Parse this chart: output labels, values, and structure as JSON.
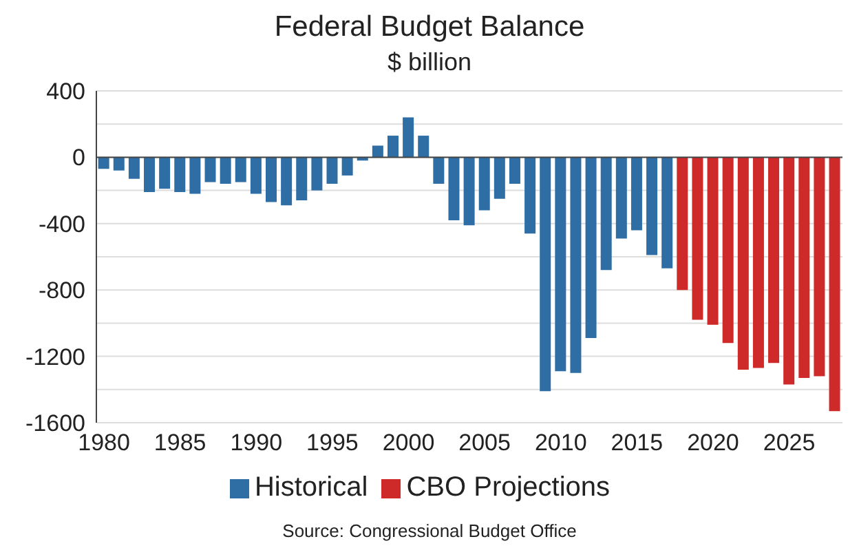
{
  "chart_data": {
    "type": "bar",
    "title": "Federal Budget Balance",
    "subtitle": "$ billion",
    "categories": [
      "1980",
      null,
      null,
      null,
      null,
      "1985",
      null,
      null,
      null,
      null,
      "1990",
      null,
      null,
      null,
      null,
      "1995",
      null,
      null,
      null,
      null,
      "2000",
      null,
      null,
      null,
      null,
      "2005",
      null,
      null,
      null,
      null,
      "2010",
      null,
      null,
      null,
      null,
      "2015",
      null,
      null,
      null,
      null,
      "2020",
      null,
      null,
      null,
      null,
      "2025",
      null,
      null,
      null
    ],
    "series": [
      {
        "name": "Historical",
        "color": "#2f6ea5",
        "values": [
          -70,
          -80,
          -130,
          -210,
          -190,
          -210,
          -220,
          -150,
          -160,
          -150,
          -220,
          -270,
          -290,
          -260,
          -200,
          -160,
          -110,
          -20,
          70,
          130,
          240,
          130,
          -160,
          -380,
          -410,
          -320,
          -250,
          -160,
          -460,
          -1410,
          -1290,
          -1300,
          -1090,
          -680,
          -490,
          -440,
          -590,
          -670,
          null,
          null,
          null,
          null,
          null,
          null,
          null,
          null,
          null,
          null,
          null
        ]
      },
      {
        "name": "CBO Projections",
        "color": "#cf2a2a",
        "values": [
          null,
          null,
          null,
          null,
          null,
          null,
          null,
          null,
          null,
          null,
          null,
          null,
          null,
          null,
          null,
          null,
          null,
          null,
          null,
          null,
          null,
          null,
          null,
          null,
          null,
          null,
          null,
          null,
          null,
          null,
          null,
          null,
          null,
          null,
          null,
          null,
          null,
          null,
          -800,
          -980,
          -1010,
          -1120,
          -1280,
          -1270,
          -1240,
          -1370,
          -1330,
          -1320,
          -1530
        ]
      }
    ],
    "stacked": true,
    "ylim": [
      -1600,
      400
    ],
    "yticks": [
      -1600,
      {
        "value": -1400,
        "label": null
      },
      -1200,
      {
        "value": -1000,
        "label": null
      },
      -800,
      {
        "value": -600,
        "label": null
      },
      -400,
      {
        "value": -200,
        "label": null
      },
      0,
      {
        "value": 200,
        "label": null
      },
      400
    ],
    "grid": "y",
    "legend": "bottom",
    "annotations": [
      "Source: Congressional Budget Office"
    ]
  }
}
